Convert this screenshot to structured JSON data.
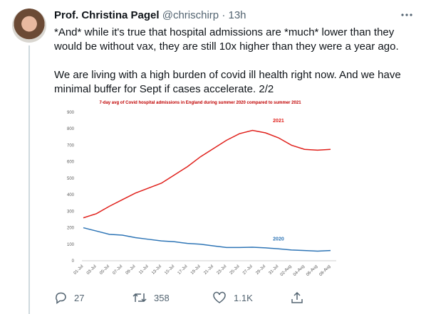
{
  "tweet": {
    "name": "Prof. Christina Pagel",
    "handle": "@chrischirp",
    "separator": "·",
    "time": "13h",
    "paragraphs": [
      "*And* while it's true that hospital admissions are *much* lower than they would be without vax, they are still 10x higher than they were a year ago.",
      "We are living with a high burden of covid ill health right now. And we have minimal buffer for Sept if cases accelerate. 2/2"
    ]
  },
  "actions": {
    "replies": 27,
    "retweets": 358,
    "likes": "1.1K"
  },
  "chart_data": {
    "type": "line",
    "title": "7-day avg of Covid hospital admissions in England during summer 2020 compared to summer 2021",
    "categories": [
      "01-Jul",
      "03-Jul",
      "05-Jul",
      "07-Jul",
      "09-Jul",
      "11-Jul",
      "13-Jul",
      "15-Jul",
      "17-Jul",
      "19-Jul",
      "21-Jul",
      "23-Jul",
      "25-Jul",
      "27-Jul",
      "29-Jul",
      "31-Jul",
      "02-Aug",
      "04-Aug",
      "06-Aug",
      "08-Aug"
    ],
    "series": [
      {
        "name": "2021",
        "color": "#e0201b",
        "values": [
          260,
          285,
          330,
          370,
          410,
          440,
          470,
          520,
          570,
          630,
          680,
          730,
          770,
          790,
          775,
          745,
          700,
          675,
          670,
          675
        ]
      },
      {
        "name": "2020",
        "color": "#2e75b6",
        "values": [
          200,
          180,
          160,
          155,
          140,
          130,
          120,
          115,
          105,
          100,
          90,
          80,
          80,
          82,
          78,
          72,
          65,
          62,
          58,
          62
        ]
      }
    ],
    "ylim": [
      0,
      900
    ],
    "yticks": [
      0,
      100,
      200,
      300,
      400,
      500,
      600,
      700,
      800,
      900
    ],
    "grid": false
  }
}
